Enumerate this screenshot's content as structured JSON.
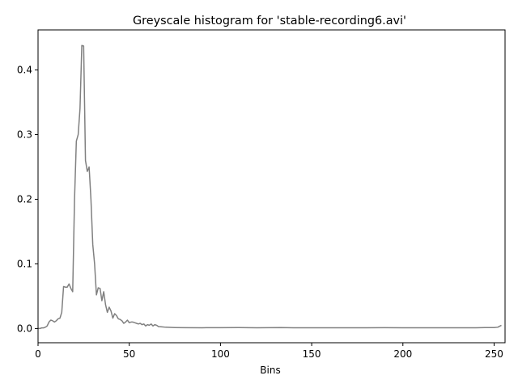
{
  "chart_data": {
    "type": "line",
    "title": "Greyscale histogram for 'stable-recording6.avi'",
    "xlabel": "Bins",
    "ylabel": "",
    "xlim": [
      0,
      256
    ],
    "ylim": [
      -0.022,
      0.462
    ],
    "xticks": [
      0,
      50,
      100,
      150,
      200,
      250
    ],
    "xtick_labels": [
      "0",
      "50",
      "100",
      "150",
      "200",
      "250"
    ],
    "yticks": [
      0.0,
      0.1,
      0.2,
      0.3,
      0.4
    ],
    "ytick_labels": [
      "0.0",
      "0.1",
      "0.2",
      "0.3",
      "0.4"
    ],
    "grid": false,
    "series": [
      {
        "color": "#808080",
        "x": [
          0,
          1,
          2,
          3,
          4,
          5,
          6,
          7,
          8,
          9,
          10,
          11,
          12,
          13,
          14,
          15,
          16,
          17,
          18,
          19,
          20,
          21,
          22,
          23,
          24,
          25,
          26,
          27,
          28,
          29,
          30,
          31,
          32,
          33,
          34,
          35,
          36,
          37,
          38,
          39,
          40,
          41,
          42,
          43,
          44,
          45,
          46,
          47,
          48,
          49,
          50,
          51,
          52,
          53,
          54,
          55,
          56,
          57,
          58,
          59,
          60,
          61,
          62,
          63,
          64,
          65,
          66,
          68,
          70,
          75,
          80,
          90,
          100,
          110,
          120,
          133,
          140,
          150,
          160,
          170,
          180,
          190,
          200,
          210,
          220,
          230,
          240,
          245,
          250,
          252,
          254
        ],
        "y": [
          0.0,
          0.0,
          0.001,
          0.001,
          0.002,
          0.004,
          0.01,
          0.013,
          0.012,
          0.01,
          0.012,
          0.015,
          0.016,
          0.025,
          0.065,
          0.064,
          0.064,
          0.069,
          0.062,
          0.057,
          0.2,
          0.29,
          0.3,
          0.34,
          0.438,
          0.437,
          0.26,
          0.243,
          0.25,
          0.2,
          0.13,
          0.1,
          0.052,
          0.063,
          0.062,
          0.043,
          0.057,
          0.037,
          0.025,
          0.033,
          0.027,
          0.016,
          0.023,
          0.02,
          0.015,
          0.014,
          0.012,
          0.008,
          0.01,
          0.013,
          0.009,
          0.01,
          0.01,
          0.009,
          0.008,
          0.007,
          0.008,
          0.006,
          0.007,
          0.004,
          0.006,
          0.005,
          0.007,
          0.004,
          0.006,
          0.005,
          0.003,
          0.0025,
          0.002,
          0.0015,
          0.0013,
          0.0012,
          0.0013,
          0.0015,
          0.0012,
          0.0015,
          0.0012,
          0.0011,
          0.0012,
          0.0011,
          0.0012,
          0.0013,
          0.0012,
          0.0011,
          0.0012,
          0.0011,
          0.0012,
          0.0015,
          0.0015,
          0.002,
          0.005
        ]
      }
    ]
  }
}
